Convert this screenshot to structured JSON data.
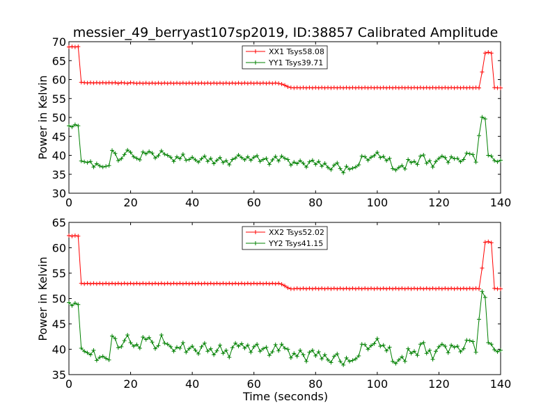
{
  "figure": {
    "title": "messier_49_berryast107sp2019, ID:38857 Calibrated Amplitude",
    "xlabel": "Time (seconds)"
  },
  "chart_data": [
    {
      "type": "line",
      "title": "messier_49_berryast107sp2019, ID:38857 Calibrated Amplitude",
      "xlabel": "",
      "ylabel": "Power in Kelvin",
      "xlim": [
        0,
        140
      ],
      "ylim": [
        30,
        70
      ],
      "xticks": [
        0,
        20,
        40,
        60,
        80,
        100,
        120,
        140
      ],
      "yticks": [
        30,
        35,
        40,
        45,
        50,
        55,
        60,
        65,
        70
      ],
      "legend_position": "top-center",
      "x": [
        0,
        1,
        2,
        3,
        4,
        5,
        6,
        7,
        8,
        9,
        10,
        11,
        12,
        13,
        14,
        15,
        16,
        17,
        18,
        19,
        20,
        21,
        22,
        23,
        24,
        25,
        26,
        27,
        28,
        29,
        30,
        31,
        32,
        33,
        34,
        35,
        36,
        37,
        38,
        39,
        40,
        41,
        42,
        43,
        44,
        45,
        46,
        47,
        48,
        49,
        50,
        51,
        52,
        53,
        54,
        55,
        56,
        57,
        58,
        59,
        60,
        61,
        62,
        63,
        64,
        65,
        66,
        67,
        68,
        69,
        70,
        71,
        72,
        73,
        74,
        75,
        76,
        77,
        78,
        79,
        80,
        81,
        82,
        83,
        84,
        85,
        86,
        87,
        88,
        89,
        90,
        91,
        92,
        93,
        94,
        95,
        96,
        97,
        98,
        99,
        100,
        101,
        102,
        103,
        104,
        105,
        106,
        107,
        108,
        109,
        110,
        111,
        112,
        113,
        114,
        115,
        116,
        117,
        118,
        119,
        120,
        121,
        122,
        123,
        124,
        125,
        126,
        127,
        128,
        129,
        130,
        131,
        132,
        133,
        134,
        135,
        136,
        137,
        138,
        139,
        140
      ],
      "series": [
        {
          "name": "XX1 Tsys58.08",
          "color": "#ff0000",
          "values": [
            68.6,
            68.7,
            68.6,
            68.7,
            59.3,
            59.2,
            59.1,
            59.2,
            59.1,
            59.2,
            59.1,
            59.2,
            59.1,
            59.2,
            59.1,
            59.2,
            59.0,
            59.2,
            59.1,
            59.0,
            59.2,
            59.1,
            59.0,
            59.1,
            59.0,
            59.1,
            59.0,
            59.1,
            59.0,
            59.1,
            59.0,
            59.1,
            59.0,
            59.1,
            59.0,
            59.1,
            59.0,
            59.1,
            59.0,
            59.1,
            59.0,
            59.1,
            59.0,
            59.1,
            59.0,
            59.1,
            59.0,
            59.1,
            59.0,
            59.1,
            59.0,
            59.1,
            59.0,
            59.1,
            59.0,
            59.1,
            59.0,
            59.1,
            59.0,
            59.1,
            59.0,
            59.1,
            59.0,
            59.1,
            59.0,
            59.1,
            59.0,
            59.1,
            59.0,
            58.8,
            58.5,
            58.1,
            57.9,
            57.8,
            57.9,
            57.8,
            57.9,
            57.8,
            57.9,
            57.8,
            57.9,
            57.8,
            57.9,
            57.8,
            57.9,
            57.8,
            57.9,
            57.8,
            57.9,
            57.8,
            57.9,
            57.8,
            57.9,
            57.8,
            57.9,
            57.8,
            57.9,
            57.8,
            57.9,
            57.8,
            57.9,
            57.8,
            57.9,
            57.8,
            57.9,
            57.8,
            57.9,
            57.8,
            57.9,
            57.8,
            57.9,
            57.8,
            57.9,
            57.8,
            57.9,
            57.8,
            57.9,
            57.8,
            57.9,
            57.8,
            57.9,
            57.8,
            57.9,
            57.8,
            57.9,
            57.8,
            57.9,
            57.8,
            57.9,
            57.8,
            57.9,
            57.8,
            57.9,
            57.8,
            62.0,
            67.0,
            67.2,
            67.0,
            57.9,
            57.8,
            57.8
          ]
        },
        {
          "name": "YY1 Tsys39.71",
          "color": "#008000",
          "values": [
            47.8,
            47.5,
            48.1,
            47.8,
            38.5,
            38.3,
            38.1,
            38.4,
            36.9,
            37.8,
            37.2,
            36.9,
            37.1,
            37.3,
            41.3,
            40.5,
            38.6,
            39.1,
            40.2,
            41.4,
            40.8,
            39.6,
            39.2,
            38.8,
            40.9,
            40.4,
            41.0,
            40.6,
            39.3,
            39.9,
            41.2,
            40.3,
            40.0,
            39.5,
            38.4,
            39.6,
            39.1,
            40.3,
            38.7,
            38.9,
            39.5,
            38.8,
            38.2,
            39.1,
            39.8,
            38.4,
            39.2,
            37.8,
            38.7,
            39.4,
            38.1,
            38.6,
            37.5,
            38.9,
            39.3,
            40.1,
            39.4,
            38.8,
            39.6,
            38.7,
            39.5,
            39.9,
            38.4,
            38.9,
            39.2,
            37.6,
            38.8,
            39.7,
            38.5,
            39.8,
            39.2,
            38.9,
            37.4,
            38.2,
            37.8,
            38.6,
            37.9,
            36.9,
            38.3,
            38.7,
            37.6,
            38.4,
            37.1,
            37.9,
            36.8,
            36.2,
            37.4,
            38.0,
            36.5,
            35.4,
            37.1,
            36.3,
            36.6,
            36.9,
            37.5,
            39.8,
            39.6,
            38.7,
            39.5,
            39.9,
            40.8,
            39.4,
            39.7,
            38.6,
            39.2,
            36.5,
            36.1,
            36.8,
            37.3,
            36.4,
            38.9,
            38.1,
            38.4,
            37.6,
            39.8,
            40.1,
            37.9,
            38.6,
            36.9,
            38.4,
            39.2,
            39.8,
            39.4,
            38.1,
            39.6,
            39.1,
            39.2,
            38.3,
            38.9,
            40.6,
            40.4,
            40.2,
            38.2,
            45.2,
            50.1,
            49.6,
            40.0,
            39.8,
            38.6,
            38.3,
            38.7
          ]
        }
      ]
    },
    {
      "type": "line",
      "title": "",
      "xlabel": "Time (seconds)",
      "ylabel": "Power in Kelvin",
      "xlim": [
        0,
        140
      ],
      "ylim": [
        35,
        65
      ],
      "xticks": [
        0,
        20,
        40,
        60,
        80,
        100,
        120,
        140
      ],
      "yticks": [
        35,
        40,
        45,
        50,
        55,
        60,
        65
      ],
      "legend_position": "top-center",
      "x": [
        0,
        1,
        2,
        3,
        4,
        5,
        6,
        7,
        8,
        9,
        10,
        11,
        12,
        13,
        14,
        15,
        16,
        17,
        18,
        19,
        20,
        21,
        22,
        23,
        24,
        25,
        26,
        27,
        28,
        29,
        30,
        31,
        32,
        33,
        34,
        35,
        36,
        37,
        38,
        39,
        40,
        41,
        42,
        43,
        44,
        45,
        46,
        47,
        48,
        49,
        50,
        51,
        52,
        53,
        54,
        55,
        56,
        57,
        58,
        59,
        60,
        61,
        62,
        63,
        64,
        65,
        66,
        67,
        68,
        69,
        70,
        71,
        72,
        73,
        74,
        75,
        76,
        77,
        78,
        79,
        80,
        81,
        82,
        83,
        84,
        85,
        86,
        87,
        88,
        89,
        90,
        91,
        92,
        93,
        94,
        95,
        96,
        97,
        98,
        99,
        100,
        101,
        102,
        103,
        104,
        105,
        106,
        107,
        108,
        109,
        110,
        111,
        112,
        113,
        114,
        115,
        116,
        117,
        118,
        119,
        120,
        121,
        122,
        123,
        124,
        125,
        126,
        127,
        128,
        129,
        130,
        131,
        132,
        133,
        134,
        135,
        136,
        137,
        138,
        139,
        140
      ],
      "series": [
        {
          "name": "XX2 Tsys52.02",
          "color": "#ff0000",
          "values": [
            62.4,
            62.3,
            62.4,
            62.3,
            53.0,
            52.9,
            53.0,
            52.9,
            53.0,
            52.9,
            53.0,
            52.9,
            53.0,
            52.9,
            53.0,
            52.9,
            53.0,
            52.9,
            53.0,
            52.9,
            53.0,
            52.9,
            53.0,
            52.9,
            53.0,
            52.9,
            53.0,
            52.9,
            53.0,
            52.9,
            53.0,
            52.9,
            53.0,
            52.9,
            53.0,
            52.9,
            53.0,
            52.9,
            53.0,
            52.9,
            53.0,
            52.9,
            53.0,
            52.9,
            53.0,
            52.9,
            53.0,
            52.9,
            53.0,
            52.9,
            53.0,
            52.9,
            53.0,
            52.9,
            53.0,
            52.9,
            53.0,
            52.9,
            53.0,
            52.9,
            53.0,
            52.9,
            53.0,
            52.9,
            53.0,
            52.9,
            53.0,
            52.9,
            53.0,
            52.8,
            52.5,
            52.1,
            51.9,
            51.9,
            52.0,
            51.9,
            52.0,
            51.9,
            52.0,
            51.9,
            52.0,
            51.9,
            52.0,
            51.9,
            52.0,
            51.9,
            52.0,
            51.9,
            52.0,
            51.9,
            52.0,
            51.9,
            52.0,
            51.9,
            52.0,
            51.9,
            52.0,
            51.9,
            52.0,
            51.9,
            52.0,
            51.9,
            52.0,
            51.9,
            52.0,
            51.9,
            52.0,
            51.9,
            52.0,
            51.9,
            52.0,
            51.9,
            52.0,
            51.9,
            52.0,
            51.9,
            52.0,
            51.9,
            52.0,
            51.9,
            52.0,
            51.9,
            52.0,
            51.9,
            52.0,
            51.9,
            52.0,
            51.9,
            52.0,
            51.9,
            52.0,
            51.9,
            52.0,
            51.9,
            56.0,
            61.1,
            61.2,
            61.0,
            52.0,
            51.9,
            51.9
          ]
        },
        {
          "name": "YY2 Tsys41.15",
          "color": "#008000",
          "values": [
            49.2,
            48.6,
            49.1,
            48.8,
            40.2,
            39.6,
            39.3,
            38.9,
            39.8,
            37.8,
            38.4,
            38.6,
            38.2,
            37.9,
            42.6,
            42.1,
            40.3,
            40.5,
            41.7,
            42.8,
            41.3,
            40.6,
            40.9,
            40.2,
            42.4,
            41.9,
            42.3,
            41.4,
            40.1,
            40.7,
            42.8,
            41.2,
            41.0,
            40.5,
            39.6,
            40.4,
            40.2,
            41.3,
            39.4,
            40.1,
            40.6,
            39.8,
            39.1,
            40.5,
            41.2,
            39.6,
            40.1,
            38.9,
            39.7,
            40.8,
            39.2,
            39.8,
            38.4,
            40.3,
            41.2,
            40.6,
            41.1,
            40.2,
            40.8,
            39.4,
            40.5,
            41.0,
            39.6,
            40.1,
            40.4,
            38.8,
            39.5,
            40.9,
            39.7,
            41.0,
            40.2,
            40.0,
            38.3,
            39.2,
            38.6,
            39.8,
            38.9,
            37.6,
            39.4,
            39.8,
            38.7,
            39.5,
            38.1,
            38.9,
            37.9,
            37.4,
            38.6,
            39.1,
            37.6,
            36.9,
            38.3,
            37.6,
            37.8,
            38.1,
            38.7,
            41.0,
            40.9,
            40.0,
            40.7,
            41.1,
            42.1,
            40.6,
            40.8,
            39.7,
            40.4,
            37.6,
            37.2,
            37.9,
            38.5,
            37.6,
            40.1,
            39.2,
            39.6,
            38.8,
            41.0,
            41.3,
            39.2,
            39.8,
            38.0,
            39.6,
            40.5,
            41.0,
            40.6,
            39.3,
            40.8,
            40.4,
            40.6,
            39.5,
            40.1,
            41.8,
            41.7,
            41.5,
            39.4,
            45.9,
            51.4,
            50.2,
            41.3,
            41.0,
            39.9,
            39.5,
            39.8
          ]
        }
      ]
    }
  ]
}
